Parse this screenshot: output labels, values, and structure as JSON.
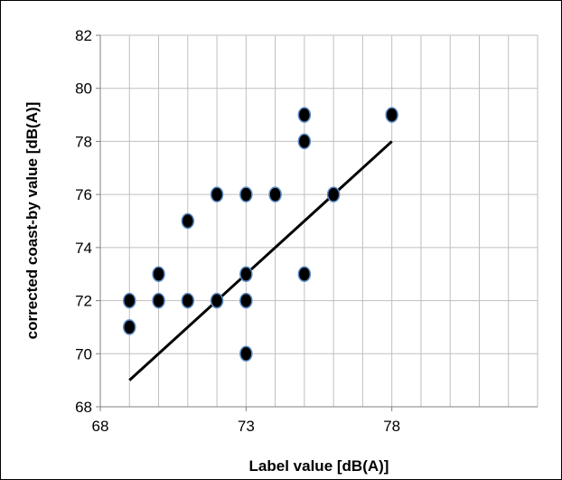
{
  "chart_data": {
    "type": "scatter",
    "title": "",
    "xlabel": "Label value [dB(A)]",
    "ylabel": "corrected coast-by value [dB(A)]",
    "xlim": [
      68,
      83
    ],
    "ylim": [
      68,
      82
    ],
    "x_ticks": [
      68,
      73,
      78
    ],
    "y_ticks": [
      68,
      70,
      72,
      74,
      76,
      78,
      80,
      82
    ],
    "x_tick_labels": [
      "68",
      "73",
      "78"
    ],
    "y_tick_labels": [
      "68",
      "70",
      "72",
      "74",
      "76",
      "78",
      "80",
      "82"
    ],
    "grid": true,
    "legend": "none",
    "series": [
      {
        "marker_color": "#000000",
        "marker_edge_color": "#5b8dc8",
        "points": [
          {
            "x": 69,
            "y": 71
          },
          {
            "x": 69,
            "y": 72
          },
          {
            "x": 70,
            "y": 72
          },
          {
            "x": 70,
            "y": 73
          },
          {
            "x": 71,
            "y": 72
          },
          {
            "x": 71,
            "y": 75
          },
          {
            "x": 72,
            "y": 72
          },
          {
            "x": 72,
            "y": 76
          },
          {
            "x": 73,
            "y": 70
          },
          {
            "x": 73,
            "y": 72
          },
          {
            "x": 73,
            "y": 73
          },
          {
            "x": 73,
            "y": 76
          },
          {
            "x": 74,
            "y": 76
          },
          {
            "x": 75,
            "y": 73
          },
          {
            "x": 75,
            "y": 78
          },
          {
            "x": 75,
            "y": 79
          },
          {
            "x": 76,
            "y": 76
          },
          {
            "x": 78,
            "y": 79
          }
        ]
      }
    ],
    "fit_line": {
      "color": "#000000",
      "points": [
        {
          "x": 69,
          "y": 69
        },
        {
          "x": 78,
          "y": 78
        }
      ]
    }
  }
}
